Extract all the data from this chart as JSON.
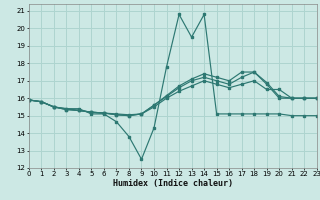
{
  "xlabel": "Humidex (Indice chaleur)",
  "bg_color": "#cce8e4",
  "line_color": "#2d7872",
  "grid_color": "#aed4cf",
  "xlim": [
    0,
    23
  ],
  "ylim": [
    12,
    21.4
  ],
  "xticks": [
    0,
    1,
    2,
    3,
    4,
    5,
    6,
    7,
    8,
    9,
    10,
    11,
    12,
    13,
    14,
    15,
    16,
    17,
    18,
    19,
    20,
    21,
    22,
    23
  ],
  "yticks": [
    12,
    13,
    14,
    15,
    16,
    17,
    18,
    19,
    20,
    21
  ],
  "series": [
    {
      "y": [
        15.9,
        15.8,
        15.5,
        15.4,
        15.4,
        15.1,
        15.1,
        14.65,
        13.8,
        12.5,
        14.3,
        17.8,
        20.8,
        19.5,
        20.8,
        15.1,
        15.1,
        15.1,
        15.1,
        15.1,
        15.1,
        15.0,
        15.0,
        15.0
      ]
    },
    {
      "y": [
        15.9,
        15.8,
        15.5,
        15.4,
        15.3,
        15.2,
        15.15,
        15.1,
        15.05,
        15.1,
        15.5,
        16.0,
        16.4,
        16.7,
        17.0,
        16.8,
        16.6,
        16.8,
        17.0,
        16.5,
        16.5,
        16.0,
        16.0,
        16.0
      ]
    },
    {
      "y": [
        15.9,
        15.8,
        15.5,
        15.35,
        15.3,
        15.2,
        15.15,
        15.05,
        15.0,
        15.1,
        15.6,
        16.1,
        16.6,
        17.0,
        17.2,
        17.0,
        16.8,
        17.2,
        17.5,
        16.8,
        16.0,
        16.0,
        16.0,
        16.0
      ]
    },
    {
      "y": [
        15.9,
        15.8,
        15.5,
        15.35,
        15.3,
        15.2,
        15.15,
        15.05,
        15.0,
        15.1,
        15.6,
        16.15,
        16.7,
        17.1,
        17.4,
        17.2,
        17.0,
        17.5,
        17.5,
        16.9,
        16.1,
        16.0,
        16.0,
        16.0
      ]
    }
  ]
}
